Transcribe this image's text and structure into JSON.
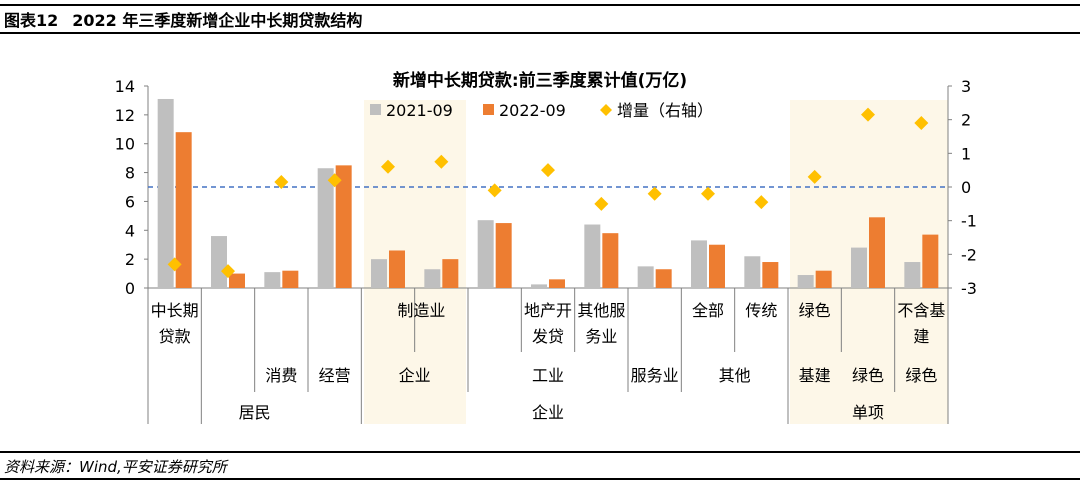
{
  "figure": {
    "number": "图表12",
    "title": "2022 年三季度新增企业中长期贷款结构",
    "source": "资料来源：Wind,平安证券研究所"
  },
  "colors": {
    "series_2021": "#bfbfbf",
    "series_2022": "#ed7d31",
    "increment": "#ffc000",
    "zero_line": "#4472c4",
    "highlight": "#fdf7e8",
    "axis": "#808080"
  },
  "chart_data": {
    "type": "bar",
    "title": "新增中长期贷款:前三季度累计值(万亿)",
    "legend": [
      "2021-09",
      "2022-09",
      "增量（右轴）"
    ],
    "legend_position": "top",
    "categories": [
      "中长期贷款",
      "消费",
      "经营",
      "企业",
      "工业",
      "制造业",
      "服务业",
      "地产开发贷",
      "其他服务业",
      "其他",
      "全部",
      "传统",
      "绿色",
      "绿色",
      "不含基建绿色"
    ],
    "series": [
      {
        "name": "2021-09",
        "axis": "left",
        "values": [
          13.1,
          3.6,
          1.1,
          8.3,
          2.0,
          1.3,
          4.7,
          0.25,
          4.4,
          1.5,
          3.3,
          2.2,
          0.9,
          2.8,
          1.8
        ]
      },
      {
        "name": "2022-09",
        "axis": "left",
        "values": [
          10.8,
          1.0,
          1.2,
          8.5,
          2.6,
          2.0,
          4.5,
          0.6,
          3.8,
          1.3,
          3.0,
          1.8,
          1.2,
          4.9,
          3.7
        ]
      },
      {
        "name": "增量（右轴）",
        "type": "scatter",
        "axis": "right",
        "values": [
          -2.3,
          -2.5,
          0.15,
          0.2,
          0.6,
          0.75,
          -0.1,
          0.5,
          -0.5,
          -0.2,
          -0.2,
          -0.45,
          0.3,
          2.15,
          1.9
        ]
      }
    ],
    "y_left": {
      "min": 0,
      "max": 14,
      "ticks": [
        "0",
        "2",
        "4",
        "6",
        "8",
        "10",
        "12",
        "14"
      ]
    },
    "y_right": {
      "min": -3,
      "max": 3,
      "ticks": [
        "-3",
        "-2",
        "-1",
        "0",
        "1",
        "2",
        "3"
      ]
    },
    "category_axis": {
      "level1": [
        "中长期贷款",
        "",
        "",
        "",
        "",
        "制造业",
        "",
        "地产开发贷",
        "其他服务业",
        "",
        "全部",
        "传统",
        "绿色",
        "",
        "不含基建"
      ],
      "level2": [
        "",
        "消费",
        "经营",
        "企业",
        "工业",
        "服务业",
        "其他",
        "基建",
        "绿色",
        "绿色"
      ],
      "level3": [
        "居民",
        "企业",
        "单项"
      ]
    }
  }
}
